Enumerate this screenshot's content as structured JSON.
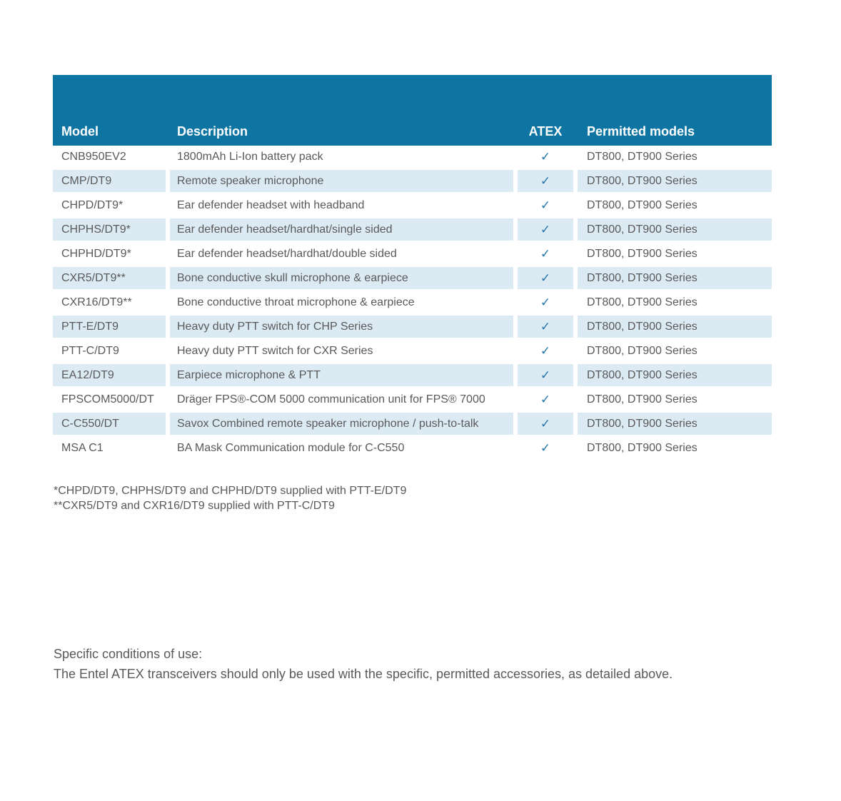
{
  "table": {
    "headers": {
      "model": "Model",
      "description": "Description",
      "atex": "ATEX",
      "permitted": "Permitted models"
    },
    "check_glyph": "✓",
    "rows": [
      {
        "model": "CNB950EV2",
        "description": "1800mAh Li-Ion battery pack",
        "atex": true,
        "permitted": "DT800, DT900 Series"
      },
      {
        "model": "CMP/DT9",
        "description": "Remote speaker microphone",
        "atex": true,
        "permitted": "DT800, DT900 Series"
      },
      {
        "model": "CHPD/DT9*",
        "description": "Ear defender headset with headband",
        "atex": true,
        "permitted": "DT800, DT900 Series"
      },
      {
        "model": "CHPHS/DT9*",
        "description": "Ear defender headset/hardhat/single sided",
        "atex": true,
        "permitted": "DT800, DT900 Series"
      },
      {
        "model": "CHPHD/DT9*",
        "description": "Ear defender headset/hardhat/double sided",
        "atex": true,
        "permitted": "DT800, DT900 Series"
      },
      {
        "model": "CXR5/DT9**",
        "description": "Bone conductive skull microphone & earpiece",
        "atex": true,
        "permitted": "DT800, DT900 Series"
      },
      {
        "model": "CXR16/DT9**",
        "description": "Bone conductive throat microphone & earpiece",
        "atex": true,
        "permitted": "DT800, DT900 Series"
      },
      {
        "model": "PTT-E/DT9",
        "description": "Heavy duty PTT switch for CHP Series",
        "atex": true,
        "permitted": "DT800, DT900 Series"
      },
      {
        "model": "PTT-C/DT9",
        "description": "Heavy duty PTT switch for CXR Series",
        "atex": true,
        "permitted": "DT800, DT900 Series"
      },
      {
        "model": "EA12/DT9",
        "description": "Earpiece microphone & PTT",
        "atex": true,
        "permitted": "DT800, DT900 Series"
      },
      {
        "model": "FPSCOM5000/DT",
        "description": "Dräger FPS®-COM 5000 communication unit for FPS® 7000",
        "atex": true,
        "permitted": "DT800, DT900 Series"
      },
      {
        "model": "C-C550/DT",
        "description": "Savox Combined remote speaker microphone / push-to-talk",
        "atex": true,
        "permitted": "DT800, DT900 Series"
      },
      {
        "model": "MSA C1",
        "description": "BA Mask Communication module for C-C550",
        "atex": true,
        "permitted": "DT800, DT900 Series"
      }
    ]
  },
  "footnotes": [
    "*CHPD/DT9, CHPHS/DT9 and CHPHD/DT9 supplied with PTT-E/DT9",
    "**CXR5/DT9 and CXR16/DT9 supplied with PTT-C/DT9"
  ],
  "conditions": {
    "title": "Specific conditions of use:",
    "body": "The Entel ATEX transceivers should only be used with the specific, permitted accessories, as detailed above."
  },
  "colors": {
    "header_bg": "#0e75a3",
    "stripe_bg": "#dcebf3",
    "text": "#59595b",
    "check": "#2476ad",
    "header_text": "#ffffff"
  }
}
